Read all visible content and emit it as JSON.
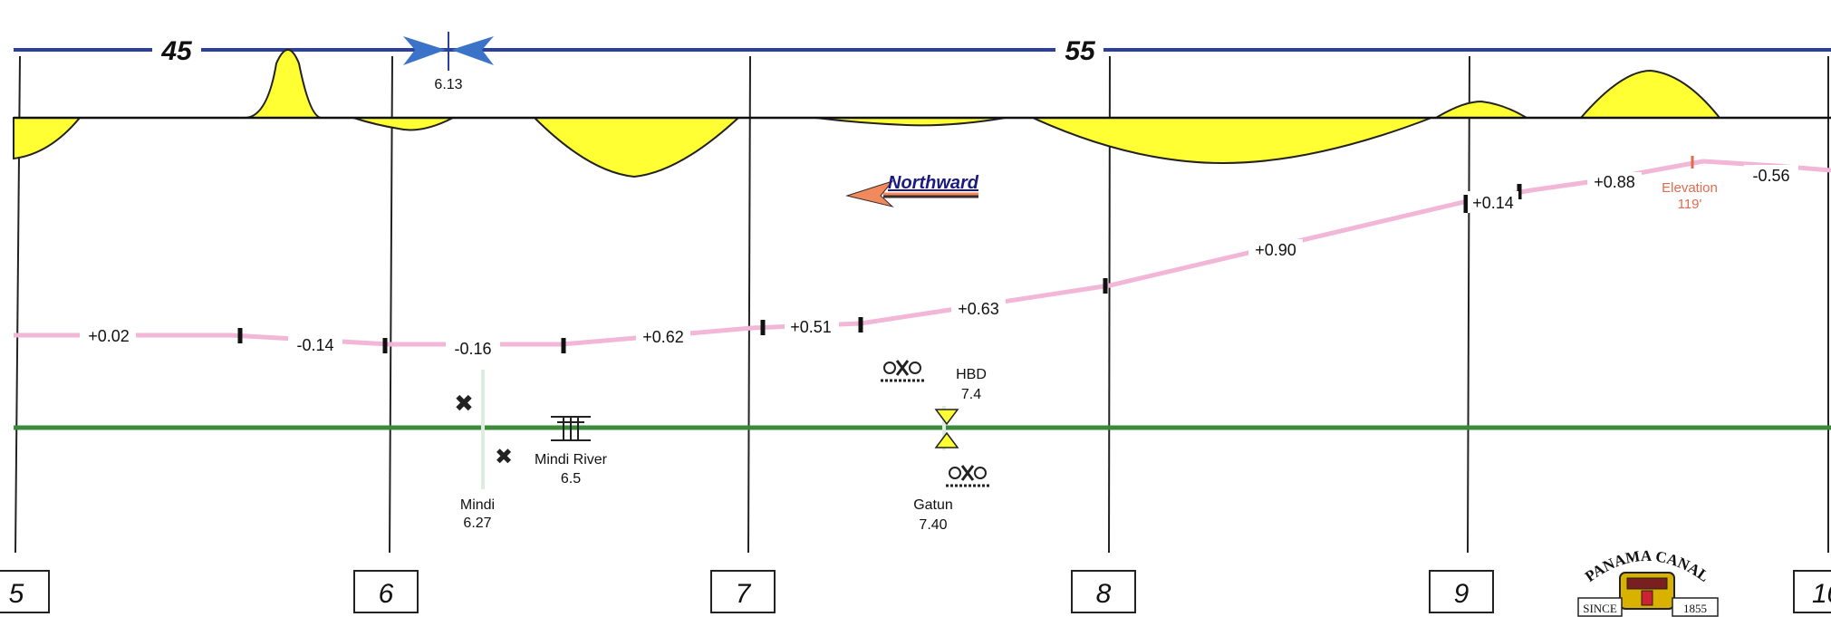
{
  "chart_data": {
    "type": "diagram",
    "speed_limits": [
      {
        "label": "45"
      },
      {
        "label": "55"
      }
    ],
    "speed_change_point": "6.13",
    "direction_label": "Northward",
    "mileposts": [
      "5",
      "6",
      "7",
      "8",
      "9",
      "10"
    ],
    "grades": [
      "+0.02",
      "-0.14",
      "-0.16",
      "+0.62",
      "+0.51",
      "+0.63",
      "+0.90",
      "+0.14",
      "+0.88",
      "-0.56"
    ],
    "elevation": {
      "label": "Elevation",
      "value": "119'"
    },
    "stations": [
      {
        "name": "Mindi",
        "mp": "6.27"
      },
      {
        "name": "Gatun",
        "mp": "7.40"
      }
    ],
    "features": [
      {
        "name": "Mindi River",
        "mp": "6.5"
      },
      {
        "name": "HBD",
        "mp": "7.4"
      }
    ],
    "logo": {
      "name": "PANAMA CANAL",
      "since_word": "SINCE",
      "year": "1855"
    },
    "colors": {
      "speed_line": "#2a3f9e",
      "speed_marker": "#3b73c9",
      "grade_line": "#f2b6d6",
      "curve_fill": "#ffff33",
      "track_line": "#3a8a3a",
      "direction_arrow": "#f08a5d",
      "elevation": "#e06b4e"
    }
  }
}
